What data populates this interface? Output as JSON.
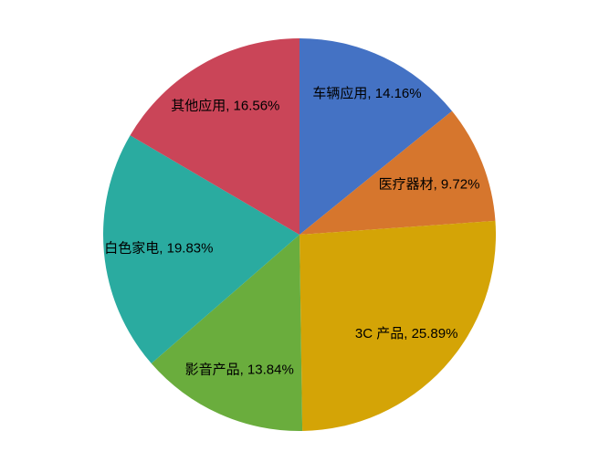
{
  "page": {
    "background": "#ffffff"
  },
  "chart_data": {
    "type": "pie",
    "title": "",
    "categories": [
      "车辆应用",
      "医疗器材",
      "3C 产品",
      "影音产品",
      "白色家电",
      "其他应用"
    ],
    "values": [
      14.16,
      9.72,
      25.89,
      13.84,
      19.83,
      16.56
    ],
    "labels": [
      "车辆应用, 14.16%",
      "医疗器材, 9.72%",
      "3C 产品, 25.89%",
      "影音产品, 13.84%",
      "白色家电, 19.83%",
      "其他应用, 16.56%"
    ],
    "colors": [
      "#4472c4",
      "#d6762d",
      "#d4a406",
      "#6aad3d",
      "#2aaba0",
      "#ca4558"
    ],
    "label_color": "#000000",
    "label_position": "inside",
    "label_radius_fractions": [
      0.8,
      0.71,
      0.74,
      0.75,
      0.72,
      0.76
    ],
    "start_angle_deg": 0,
    "direction": "clockwise",
    "legend": "none",
    "grid": "off"
  }
}
